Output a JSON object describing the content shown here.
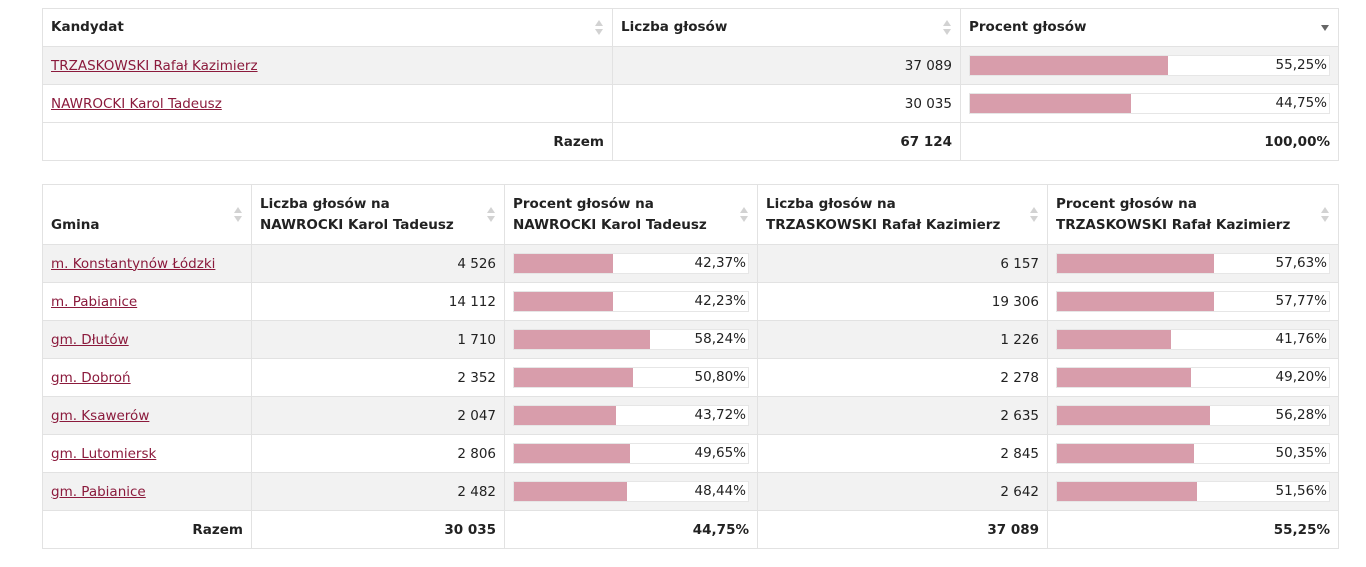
{
  "candidates_table": {
    "headers": {
      "candidate": "Kandydat",
      "votes": "Liczba głosów",
      "percent": "Procent głosów"
    },
    "rows": [
      {
        "name": "TRZASKOWSKI Rafał Kazimierz",
        "votes": "37 089",
        "percent_label": "55,25%",
        "percent": 55.25
      },
      {
        "name": "NAWROCKI Karol Tadeusz",
        "votes": "30 035",
        "percent_label": "44,75%",
        "percent": 44.75
      }
    ],
    "total": {
      "label": "Razem",
      "votes": "67 124",
      "percent": "100,00%"
    }
  },
  "municipalities_table": {
    "headers": {
      "gmina": "Gmina",
      "nawrocki_votes_1": "Liczba głosów na",
      "nawrocki_votes_2": "NAWROCKI Karol Tadeusz",
      "nawrocki_pct_1": "Procent głosów na",
      "nawrocki_pct_2": "NAWROCKI Karol Tadeusz",
      "trzaskowski_votes_1": "Liczba głosów na",
      "trzaskowski_votes_2": "TRZASKOWSKI Rafał Kazimierz",
      "trzaskowski_pct_1": "Procent głosów na",
      "trzaskowski_pct_2": "TRZASKOWSKI Rafał Kazimierz"
    },
    "rows": [
      {
        "name": "m. Konstantynów Łódzki",
        "n_votes": "4 526",
        "n_pct_label": "42,37%",
        "n_pct": 42.37,
        "t_votes": "6 157",
        "t_pct_label": "57,63%",
        "t_pct": 57.63
      },
      {
        "name": "m. Pabianice",
        "n_votes": "14 112",
        "n_pct_label": "42,23%",
        "n_pct": 42.23,
        "t_votes": "19 306",
        "t_pct_label": "57,77%",
        "t_pct": 57.77
      },
      {
        "name": "gm. Dłutów",
        "n_votes": "1 710",
        "n_pct_label": "58,24%",
        "n_pct": 58.24,
        "t_votes": "1 226",
        "t_pct_label": "41,76%",
        "t_pct": 41.76
      },
      {
        "name": "gm. Dobroń",
        "n_votes": "2 352",
        "n_pct_label": "50,80%",
        "n_pct": 50.8,
        "t_votes": "2 278",
        "t_pct_label": "49,20%",
        "t_pct": 49.2
      },
      {
        "name": "gm. Ksawerów",
        "n_votes": "2 047",
        "n_pct_label": "43,72%",
        "n_pct": 43.72,
        "t_votes": "2 635",
        "t_pct_label": "56,28%",
        "t_pct": 56.28
      },
      {
        "name": "gm. Lutomiersk",
        "n_votes": "2 806",
        "n_pct_label": "49,65%",
        "n_pct": 49.65,
        "t_votes": "2 845",
        "t_pct_label": "50,35%",
        "t_pct": 50.35
      },
      {
        "name": "gm. Pabianice",
        "n_votes": "2 482",
        "n_pct_label": "48,44%",
        "n_pct": 48.44,
        "t_votes": "2 642",
        "t_pct_label": "51,56%",
        "t_pct": 51.56
      }
    ],
    "total": {
      "label": "Razem",
      "n_votes": "30 035",
      "n_pct": "44,75%",
      "t_votes": "37 089",
      "t_pct": "55,25%"
    }
  },
  "colors": {
    "bar_fill": "#d89dab",
    "link": "#8b1a3c",
    "row_stripe": "#f2f2f2"
  },
  "icons": {
    "sort": "sort-arrows-icon",
    "sort_desc": "sort-desc-icon"
  }
}
